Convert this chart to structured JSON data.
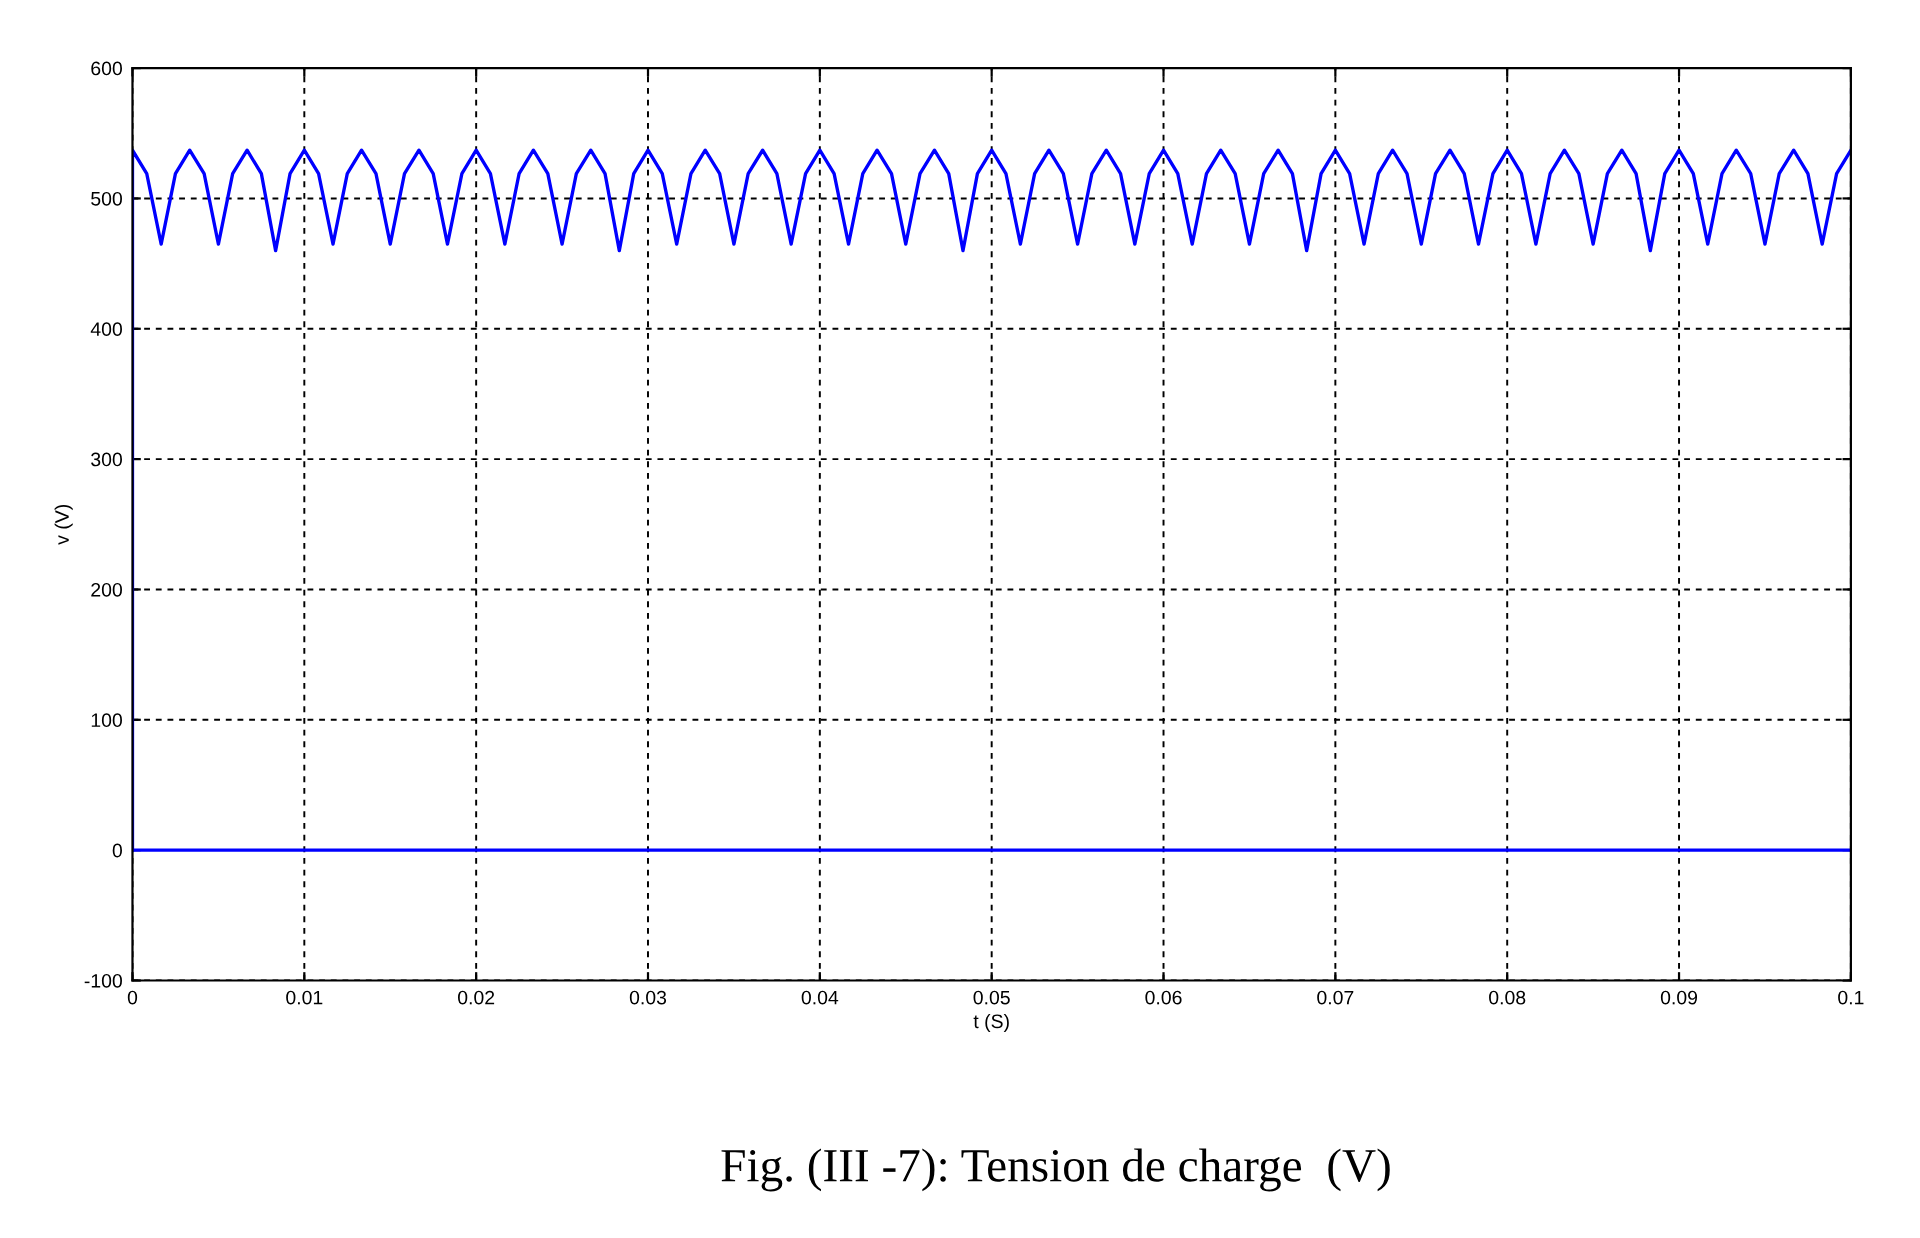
{
  "chart_data": {
    "type": "line",
    "xlabel": "t (S)",
    "ylabel": "v (V)",
    "annotations": [
      "Fig. (III -7): Tension de charge  (V)"
    ],
    "xlim": [
      0,
      0.1
    ],
    "ylim": [
      -100,
      600
    ],
    "xticks": [
      0,
      0.01,
      0.02,
      0.03,
      0.04,
      0.05,
      0.06,
      0.07,
      0.08,
      0.09,
      0.1
    ],
    "yticks": [
      -100,
      0,
      100,
      200,
      300,
      400,
      500,
      600
    ],
    "grid": true,
    "line_style": "solid",
    "series": [
      {
        "color": "#0000ff",
        "x": [
          0,
          0,
          0.00083,
          0.00167,
          0.0025,
          0.00333,
          0.00417,
          0.005,
          0.00583,
          0.00667,
          0.0075,
          0.00833,
          0.00917,
          0.01,
          0.01083,
          0.01167,
          0.0125,
          0.01333,
          0.01417,
          0.015,
          0.01583,
          0.01667,
          0.0175,
          0.01833,
          0.01917,
          0.02,
          0.02083,
          0.02167,
          0.0225,
          0.02333,
          0.02417,
          0.025,
          0.02583,
          0.02667,
          0.0275,
          0.02833,
          0.02917,
          0.03,
          0.03083,
          0.03167,
          0.0325,
          0.03333,
          0.03417,
          0.035,
          0.03583,
          0.03667,
          0.0375,
          0.03833,
          0.03917,
          0.04,
          0.04083,
          0.04167,
          0.0425,
          0.04333,
          0.04417,
          0.045,
          0.04583,
          0.04667,
          0.0475,
          0.04833,
          0.04917,
          0.05,
          0.05083,
          0.05167,
          0.0525,
          0.05333,
          0.05417,
          0.055,
          0.05583,
          0.05667,
          0.0575,
          0.05833,
          0.05917,
          0.06,
          0.06083,
          0.06167,
          0.0625,
          0.06333,
          0.06417,
          0.065,
          0.06583,
          0.06667,
          0.0675,
          0.06833,
          0.06917,
          0.07,
          0.07083,
          0.07167,
          0.0725,
          0.07333,
          0.07417,
          0.075,
          0.07583,
          0.07667,
          0.0775,
          0.07833,
          0.07917,
          0.08,
          0.08083,
          0.08167,
          0.0825,
          0.08333,
          0.08417,
          0.085,
          0.08583,
          0.08667,
          0.0875,
          0.08833,
          0.08917,
          0.09,
          0.09083,
          0.09167,
          0.0925,
          0.09333,
          0.09417,
          0.095,
          0.09583,
          0.09667,
          0.0975,
          0.09833,
          0.09917,
          0.1
        ],
        "values": [
          0,
          537,
          519,
          465,
          519,
          537,
          519,
          465,
          519,
          537,
          519,
          460,
          519,
          537,
          519,
          465,
          519,
          537,
          519,
          465,
          519,
          537,
          519,
          465,
          519,
          537,
          519,
          465,
          519,
          537,
          519,
          465,
          519,
          537,
          519,
          460,
          519,
          537,
          519,
          465,
          519,
          537,
          519,
          465,
          519,
          537,
          519,
          465,
          519,
          537,
          519,
          465,
          519,
          537,
          519,
          465,
          519,
          537,
          519,
          460,
          519,
          537,
          519,
          465,
          519,
          537,
          519,
          465,
          519,
          537,
          519,
          465,
          519,
          537,
          519,
          465,
          519,
          537,
          519,
          465,
          519,
          537,
          519,
          460,
          519,
          537,
          519,
          465,
          519,
          537,
          519,
          465,
          519,
          537,
          519,
          465,
          519,
          537,
          519,
          465,
          519,
          537,
          519,
          465,
          519,
          537,
          519,
          460,
          519,
          537,
          519,
          465,
          519,
          537,
          519,
          465,
          519,
          537,
          519,
          465,
          519,
          537
        ]
      },
      {
        "color": "#0000ff",
        "x": [
          0,
          0.1
        ],
        "values": [
          0,
          0
        ]
      }
    ]
  }
}
